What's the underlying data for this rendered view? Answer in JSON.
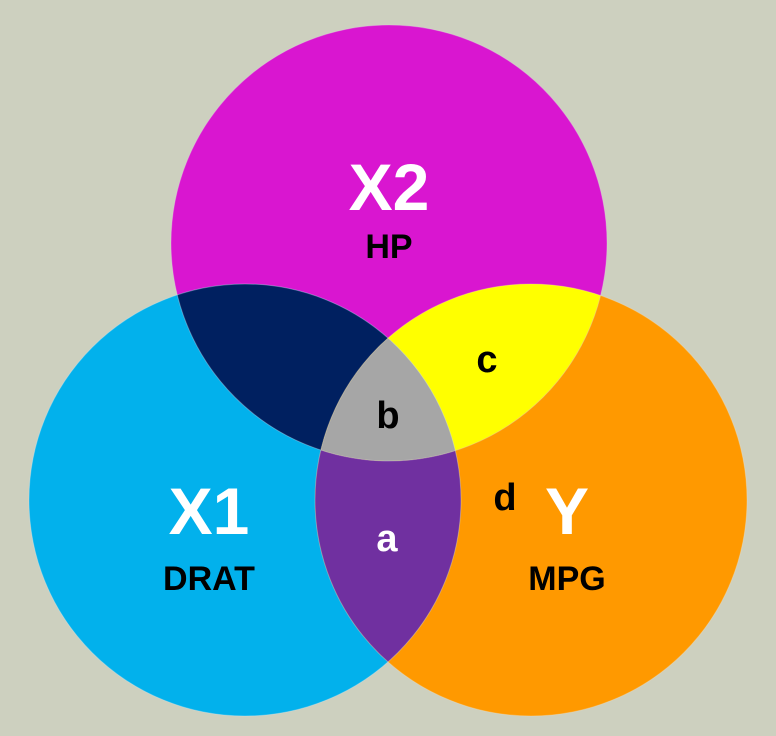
{
  "diagram": {
    "type": "venn-3",
    "background_color": "#cdd0bf",
    "sets": {
      "x2": {
        "label": "X2",
        "sublabel": "HP",
        "color": "#d916d0"
      },
      "x1": {
        "label": "X1",
        "sublabel": "DRAT",
        "color": "#02b1ec"
      },
      "y": {
        "label": "Y",
        "sublabel": "MPG",
        "color": "#ff9900"
      }
    },
    "regions": {
      "a": {
        "label": "a",
        "color": "#7030a0",
        "text_color": "#ffffff",
        "description": "X1 ∩ Y"
      },
      "b": {
        "label": "b",
        "color": "#a6a6a6",
        "text_color": "#000000",
        "description": "X1 ∩ X2 ∩ Y"
      },
      "c": {
        "label": "c",
        "color": "#ffff00",
        "text_color": "#000000",
        "description": "X2 ∩ Y"
      },
      "d": {
        "label": "d",
        "text_color": "#000000",
        "description": "Y only"
      },
      "x1_x2": {
        "color": "#002060",
        "description": "X1 ∩ X2"
      }
    }
  }
}
